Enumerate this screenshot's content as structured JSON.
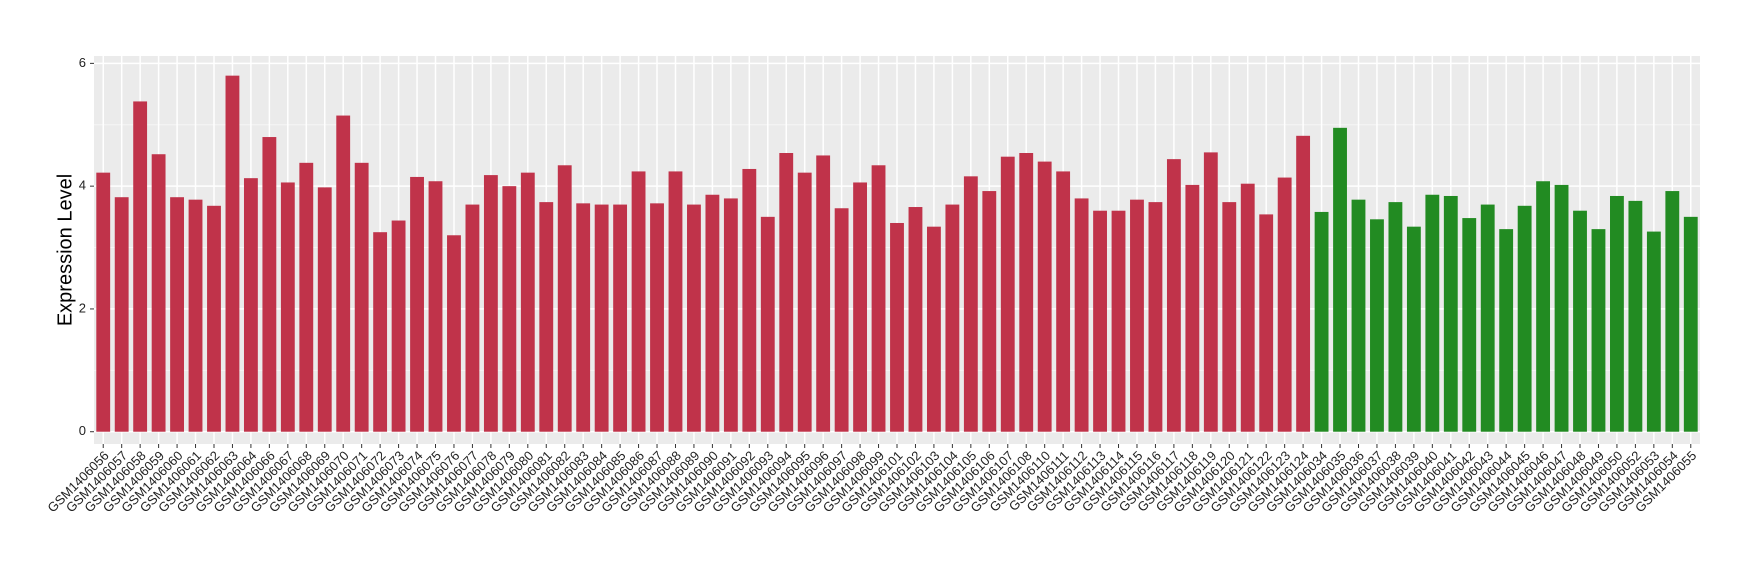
{
  "chart_data": {
    "type": "bar",
    "y_label": "Expression Level",
    "categories": [
      "GSM1406056",
      "GSM1406057",
      "GSM1406058",
      "GSM1406059",
      "GSM1406060",
      "GSM1406061",
      "GSM1406062",
      "GSM1406063",
      "GSM1406064",
      "GSM1406066",
      "GSM1406067",
      "GSM1406068",
      "GSM1406069",
      "GSM1406070",
      "GSM1406071",
      "GSM1406072",
      "GSM1406073",
      "GSM1406074",
      "GSM1406075",
      "GSM1406076",
      "GSM1406077",
      "GSM1406078",
      "GSM1406079",
      "GSM1406080",
      "GSM1406081",
      "GSM1406082",
      "GSM1406083",
      "GSM1406084",
      "GSM1406085",
      "GSM1406086",
      "GSM1406087",
      "GSM1406088",
      "GSM1406089",
      "GSM1406090",
      "GSM1406091",
      "GSM1406092",
      "GSM1406093",
      "GSM1406094",
      "GSM1406095",
      "GSM1406096",
      "GSM1406097",
      "GSM1406098",
      "GSM1406099",
      "GSM1406101",
      "GSM1406102",
      "GSM1406103",
      "GSM1406104",
      "GSM1406105",
      "GSM1406106",
      "GSM1406107",
      "GSM1406108",
      "GSM1406110",
      "GSM1406111",
      "GSM1406112",
      "GSM1406113",
      "GSM1406114",
      "GSM1406115",
      "GSM1406116",
      "GSM1406117",
      "GSM1406118",
      "GSM1406119",
      "GSM1406120",
      "GSM1406121",
      "GSM1406122",
      "GSM1406123",
      "GSM1406124",
      "GSM1406034",
      "GSM1406035",
      "GSM1406036",
      "GSM1406037",
      "GSM1406038",
      "GSM1406039",
      "GSM1406040",
      "GSM1406041",
      "GSM1406042",
      "GSM1406043",
      "GSM1406044",
      "GSM1406045",
      "GSM1406046",
      "GSM1406047",
      "GSM1406048",
      "GSM1406049",
      "GSM1406050",
      "GSM1406052",
      "GSM1406053",
      "GSM1406054",
      "GSM1406055"
    ],
    "values": [
      4.22,
      3.82,
      5.38,
      4.52,
      3.82,
      3.78,
      3.68,
      5.8,
      4.13,
      4.8,
      4.06,
      4.38,
      3.98,
      5.15,
      4.38,
      3.25,
      3.44,
      4.15,
      4.08,
      3.2,
      3.7,
      4.18,
      4.0,
      4.22,
      3.74,
      4.34,
      3.72,
      3.7,
      3.7,
      4.24,
      3.72,
      4.24,
      3.7,
      3.86,
      3.8,
      4.28,
      3.5,
      4.54,
      4.22,
      4.5,
      3.64,
      4.06,
      4.34,
      3.4,
      3.66,
      3.34,
      3.7,
      4.16,
      3.92,
      4.48,
      4.54,
      4.4,
      4.24,
      3.8,
      3.6,
      3.6,
      3.78,
      3.74,
      4.44,
      4.02,
      4.55,
      3.74,
      4.04,
      3.54,
      4.14,
      4.82,
      3.58,
      4.95,
      3.78,
      3.46,
      3.74,
      3.34,
      3.86,
      3.84,
      3.48,
      3.7,
      3.3,
      3.68,
      4.08,
      4.02,
      3.6,
      3.3,
      3.84,
      3.76,
      3.26,
      3.92,
      3.5
    ],
    "colors": [
      "#c0334a",
      "#c0334a",
      "#c0334a",
      "#c0334a",
      "#c0334a",
      "#c0334a",
      "#c0334a",
      "#c0334a",
      "#c0334a",
      "#c0334a",
      "#c0334a",
      "#c0334a",
      "#c0334a",
      "#c0334a",
      "#c0334a",
      "#c0334a",
      "#c0334a",
      "#c0334a",
      "#c0334a",
      "#c0334a",
      "#c0334a",
      "#c0334a",
      "#c0334a",
      "#c0334a",
      "#c0334a",
      "#c0334a",
      "#c0334a",
      "#c0334a",
      "#c0334a",
      "#c0334a",
      "#c0334a",
      "#c0334a",
      "#c0334a",
      "#c0334a",
      "#c0334a",
      "#c0334a",
      "#c0334a",
      "#c0334a",
      "#c0334a",
      "#c0334a",
      "#c0334a",
      "#c0334a",
      "#c0334a",
      "#c0334a",
      "#c0334a",
      "#c0334a",
      "#c0334a",
      "#c0334a",
      "#c0334a",
      "#c0334a",
      "#c0334a",
      "#c0334a",
      "#c0334a",
      "#c0334a",
      "#c0334a",
      "#c0334a",
      "#c0334a",
      "#c0334a",
      "#c0334a",
      "#c0334a",
      "#c0334a",
      "#c0334a",
      "#c0334a",
      "#c0334a",
      "#c0334a",
      "#c0334a",
      "#228b22",
      "#228b22",
      "#228b22",
      "#228b22",
      "#228b22",
      "#228b22",
      "#228b22",
      "#228b22",
      "#228b22",
      "#228b22",
      "#228b22",
      "#228b22",
      "#228b22",
      "#228b22",
      "#228b22",
      "#228b22",
      "#228b22",
      "#228b22",
      "#228b22",
      "#228b22",
      "#228b22"
    ],
    "ylim": [
      -0.2,
      6.12
    ],
    "yticks": [
      0,
      2,
      4,
      6
    ],
    "grid": true,
    "minor_grid": true
  }
}
